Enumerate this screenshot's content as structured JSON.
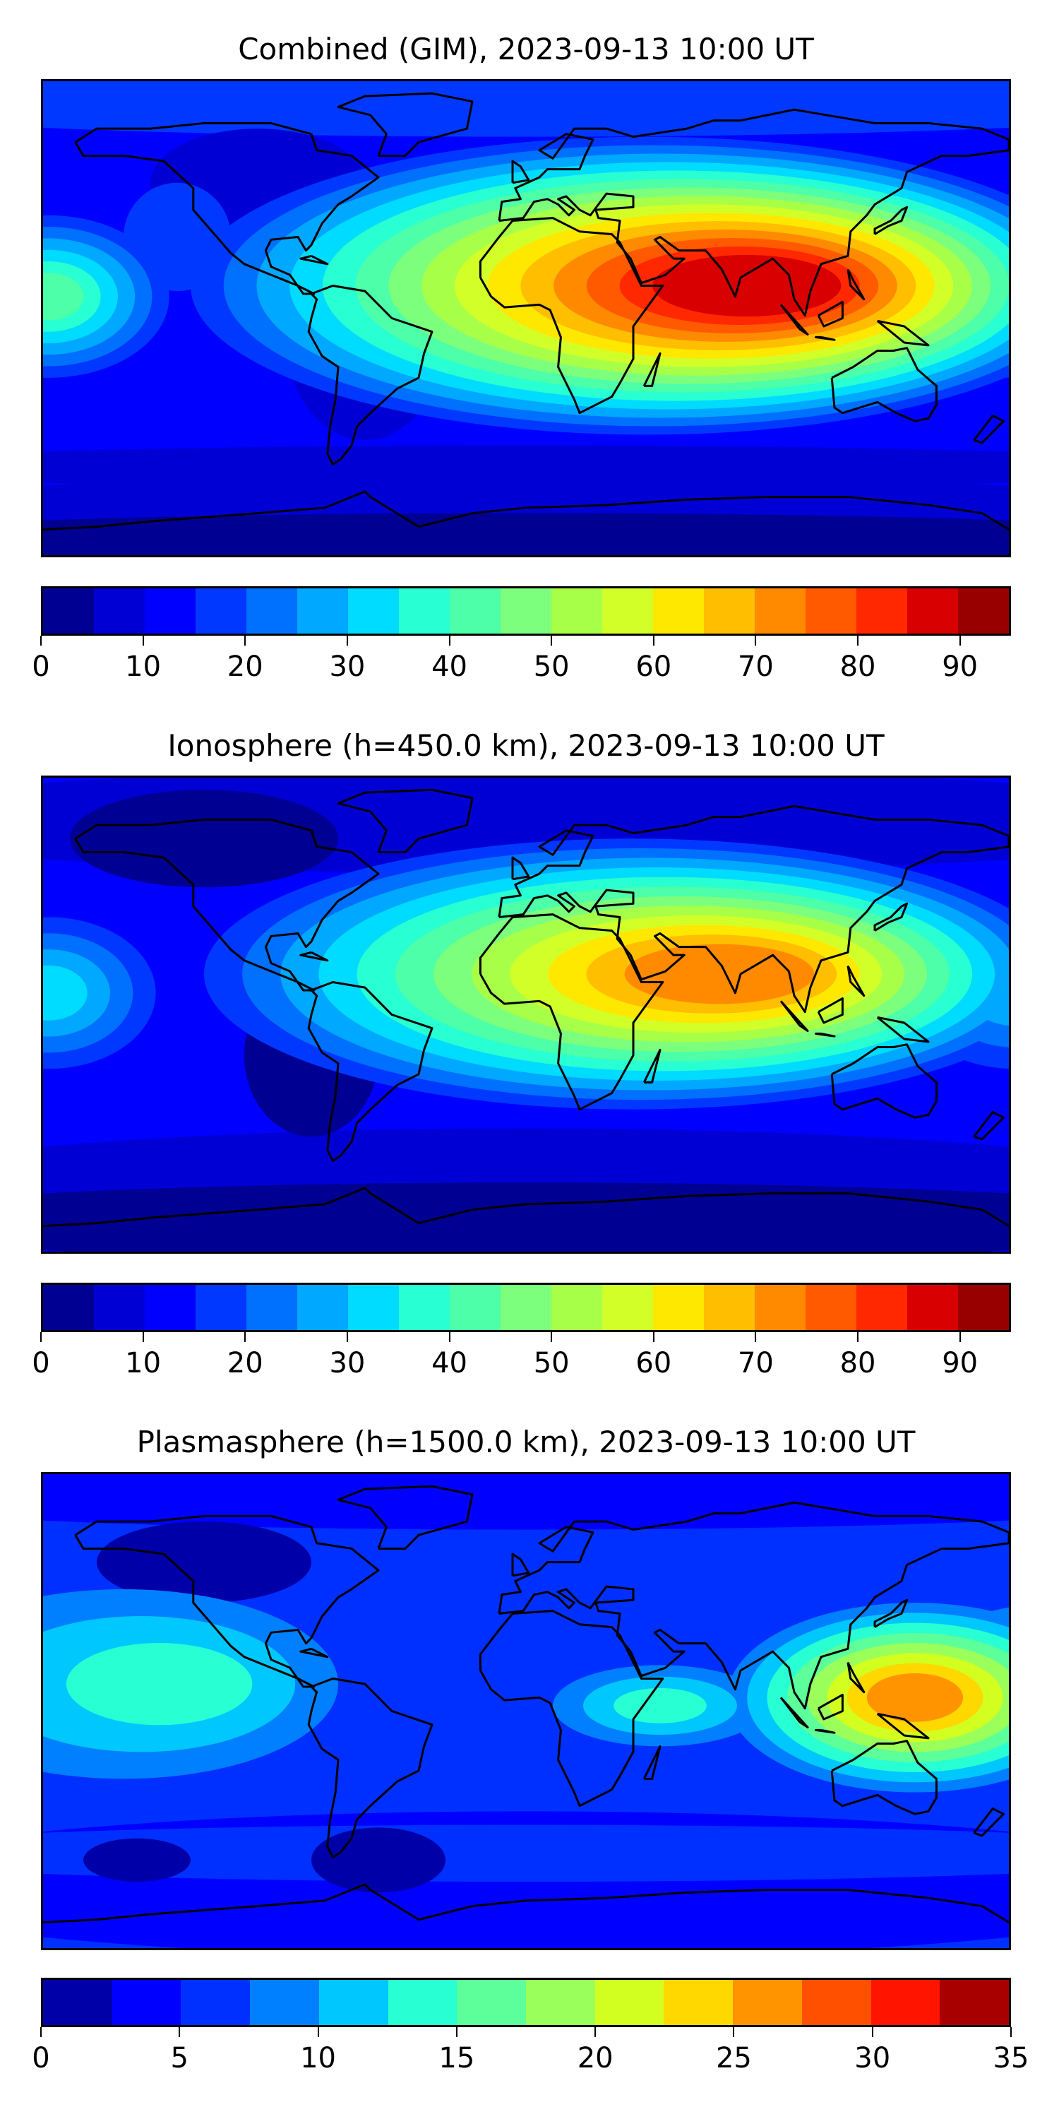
{
  "chart_data": [
    {
      "type": "heatmap",
      "title": "Combined (GIM), 2023-09-13 10:00 UT",
      "colorbar": {
        "range": [
          0,
          95
        ],
        "levels": [
          0,
          5,
          10,
          15,
          20,
          25,
          30,
          35,
          40,
          45,
          50,
          55,
          60,
          65,
          70,
          75,
          80,
          85,
          90,
          95
        ],
        "ticks": [
          "0",
          "10",
          "20",
          "30",
          "40",
          "50",
          "60",
          "70",
          "80",
          "90"
        ],
        "tick_values": [
          0,
          10,
          20,
          30,
          40,
          50,
          60,
          70,
          80,
          90
        ],
        "colors": [
          "#000092",
          "#0000d5",
          "#0000ff",
          "#0038ff",
          "#0070ff",
          "#00a8ff",
          "#00dcff",
          "#28ffd2",
          "#4cffa8",
          "#7cff7c",
          "#a8ff48",
          "#d2ff28",
          "#ffe800",
          "#ffbe00",
          "#ff8a00",
          "#ff5a00",
          "#ff2800",
          "#d80000",
          "#980000"
        ]
      },
      "max_region": "Northern Africa / South Asia, ~85-95"
    },
    {
      "type": "heatmap",
      "title": "Ionosphere  (h=450.0 km), 2023-09-13 10:00 UT",
      "colorbar": {
        "range": [
          0,
          95
        ],
        "levels": [
          0,
          5,
          10,
          15,
          20,
          25,
          30,
          35,
          40,
          45,
          50,
          55,
          60,
          65,
          70,
          75,
          80,
          85,
          90,
          95
        ],
        "ticks": [
          "0",
          "10",
          "20",
          "30",
          "40",
          "50",
          "60",
          "70",
          "80",
          "90"
        ],
        "tick_values": [
          0,
          10,
          20,
          30,
          40,
          50,
          60,
          70,
          80,
          90
        ],
        "colors": [
          "#000092",
          "#0000d5",
          "#0000ff",
          "#0038ff",
          "#0070ff",
          "#00a8ff",
          "#00dcff",
          "#28ffd2",
          "#4cffa8",
          "#7cff7c",
          "#a8ff48",
          "#d2ff28",
          "#ffe800",
          "#ffbe00",
          "#ff8a00",
          "#ff5a00",
          "#ff2800",
          "#d80000",
          "#980000"
        ]
      },
      "max_region": "Arabia / South Asia, ~70-75"
    },
    {
      "type": "heatmap",
      "title": "Plasmasphere (h=1500.0 km), 2023-09-13 10:00 UT",
      "colorbar": {
        "range": [
          0,
          35
        ],
        "levels": [
          0,
          2.5,
          5,
          7.5,
          10,
          12.5,
          15,
          17.5,
          20,
          22.5,
          25,
          27.5,
          30,
          32.5,
          35
        ],
        "ticks": [
          "0",
          "5",
          "10",
          "15",
          "20",
          "25",
          "30",
          "35"
        ],
        "tick_values": [
          0,
          5,
          10,
          15,
          20,
          25,
          30,
          35
        ],
        "colors": [
          "#0000a8",
          "#0000ff",
          "#0030ff",
          "#0080ff",
          "#00c8ff",
          "#28ffd2",
          "#5cff9a",
          "#9aff5a",
          "#d2ff20",
          "#ffd800",
          "#ff9400",
          "#ff5000",
          "#ff1400",
          "#a80000"
        ]
      },
      "max_region": "Western Pacific / Philippines, ~25-27.5"
    }
  ]
}
